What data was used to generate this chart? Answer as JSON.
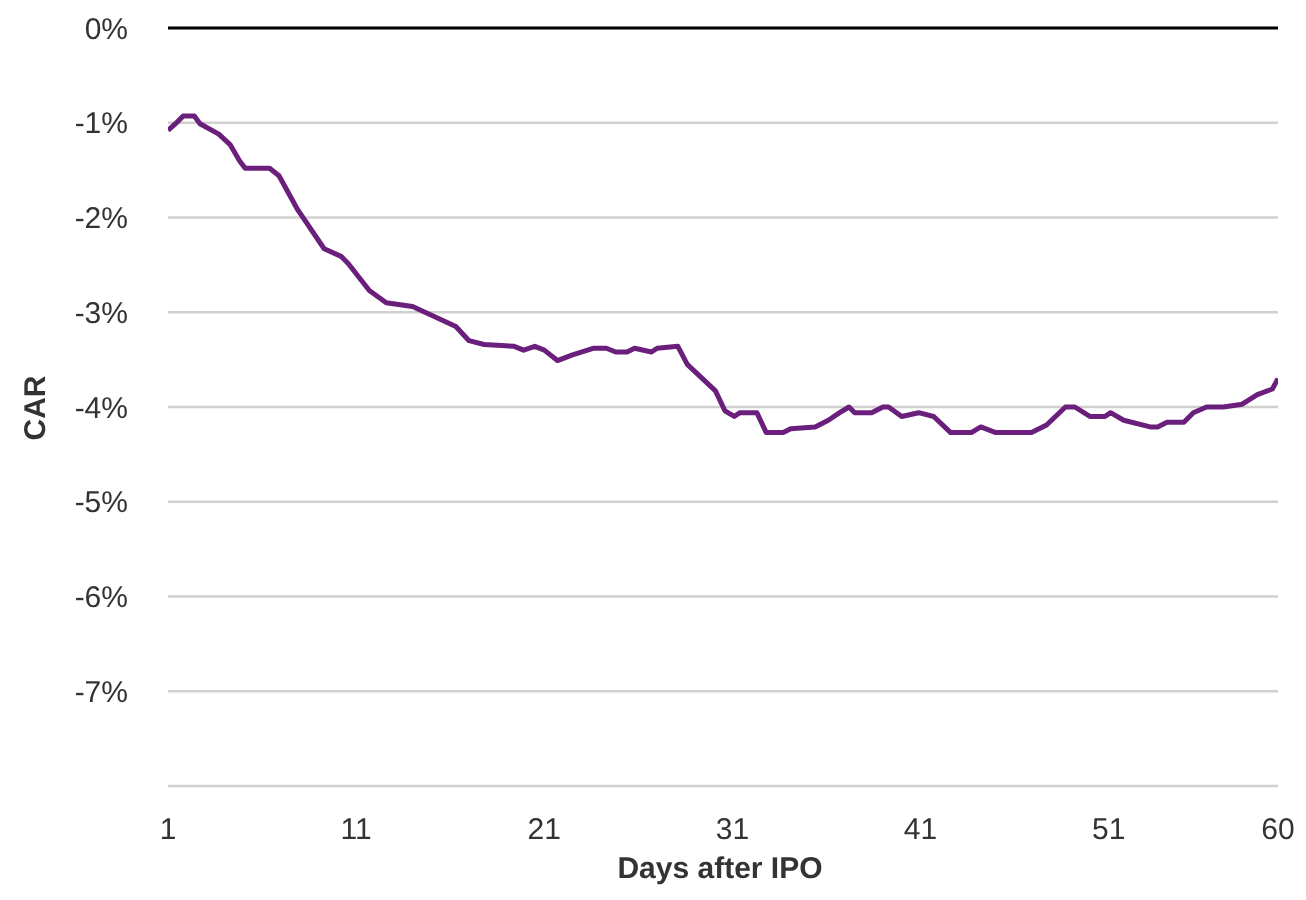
{
  "chart_data": {
    "type": "line",
    "xlabel": "Days after IPO",
    "ylabel": "CAR",
    "xlim": [
      1,
      60
    ],
    "xticks": [
      1,
      11,
      21,
      31,
      41,
      51,
      60
    ],
    "ylim": [
      -8,
      0
    ],
    "yticks": [
      {
        "value": 0,
        "label": "0%"
      },
      {
        "value": -1,
        "label": "-1%"
      },
      {
        "value": -2,
        "label": "-2%"
      },
      {
        "value": -3,
        "label": "-3%"
      },
      {
        "value": -4,
        "label": "-4%"
      },
      {
        "value": -5,
        "label": "-5%"
      },
      {
        "value": -6,
        "label": "-6%"
      },
      {
        "value": -7,
        "label": "-7%"
      },
      {
        "value": -8,
        "label": null
      }
    ],
    "grid": "y",
    "marker": "none",
    "line_style": "solid",
    "ref_lines": [
      {
        "axis": "y",
        "value": 0,
        "color": "#000000"
      }
    ],
    "series": [
      {
        "color": "#6b1f7c",
        "x": [
          1,
          1.4,
          1.8,
          2.4,
          2.7,
          3.7,
          4.3,
          4.8,
          5.1,
          6.4,
          6.9,
          7.9,
          9.3,
          10.2,
          10.6,
          11.7,
          12.6,
          14,
          16.3,
          17,
          17.8,
          19.4,
          19.9,
          20.5,
          21,
          21.7,
          22.5,
          23.6,
          24.3,
          24.8,
          25.4,
          25.8,
          26.7,
          27,
          28.1,
          28.6,
          30.1,
          30.6,
          31.1,
          31.4,
          32.3,
          32.8,
          33.7,
          34.1,
          35.4,
          36.1,
          36.7,
          37.2,
          37.5,
          38.4,
          39,
          39.3,
          40,
          40.9,
          41.7,
          42.6,
          43.7,
          44.2,
          45,
          46.9,
          47.7,
          48.7,
          49.2,
          50,
          50.8,
          51.1,
          51.8,
          53.2,
          53.6,
          54.1,
          55,
          55.5,
          56.2,
          57.1,
          58.1,
          58.9,
          59.7,
          60
        ],
        "values": [
          -1.08,
          -1.01,
          -0.93,
          -0.93,
          -1.01,
          -1.12,
          -1.23,
          -1.4,
          -1.48,
          -1.48,
          -1.56,
          -1.92,
          -2.33,
          -2.41,
          -2.49,
          -2.77,
          -2.9,
          -2.94,
          -3.15,
          -3.3,
          -3.34,
          -3.36,
          -3.4,
          -3.36,
          -3.4,
          -3.51,
          -3.45,
          -3.38,
          -3.38,
          -3.42,
          -3.42,
          -3.38,
          -3.42,
          -3.38,
          -3.36,
          -3.55,
          -3.83,
          -4.04,
          -4.1,
          -4.06,
          -4.06,
          -4.27,
          -4.27,
          -4.23,
          -4.21,
          -4.14,
          -4.06,
          -4,
          -4.06,
          -4.06,
          -4,
          -4,
          -4.1,
          -4.06,
          -4.1,
          -4.27,
          -4.27,
          -4.21,
          -4.27,
          -4.27,
          -4.19,
          -4,
          -4,
          -4.1,
          -4.1,
          -4.06,
          -4.14,
          -4.21,
          -4.21,
          -4.16,
          -4.16,
          -4.06,
          -4,
          -4,
          -3.97,
          -3.87,
          -3.81,
          -3.7
        ]
      }
    ]
  }
}
